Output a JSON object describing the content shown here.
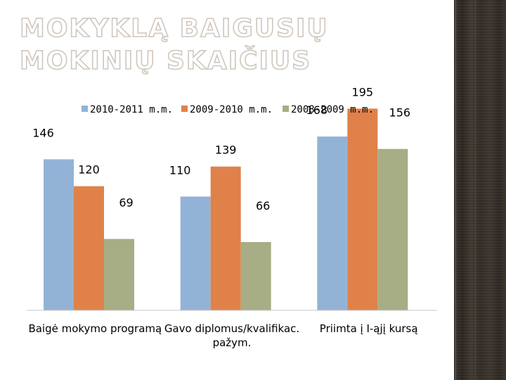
{
  "slide": {
    "title": "MOKYKLĄ BAIGUSIŲ MOKINIŲ SKAIČIUS"
  },
  "chart_data": {
    "type": "bar",
    "title": "",
    "xlabel": "",
    "ylabel": "",
    "categories": [
      "Baigė mokymo programą",
      "Gavo diplomus/kvalifikac. pažym.",
      "Priimta į I-ąjį kursą"
    ],
    "series": [
      {
        "name": "2010-2011 m.m.",
        "color": "#93b3d6",
        "values": [
          146,
          110,
          168
        ]
      },
      {
        "name": "2009-2010 m.m.",
        "color": "#e0814a",
        "values": [
          120,
          139,
          195
        ]
      },
      {
        "name": "2008-2009 m.m.",
        "color": "#a7ad84",
        "values": [
          69,
          66,
          156
        ]
      }
    ],
    "ylim": [
      0,
      200
    ],
    "grid": false,
    "legend": "top"
  }
}
